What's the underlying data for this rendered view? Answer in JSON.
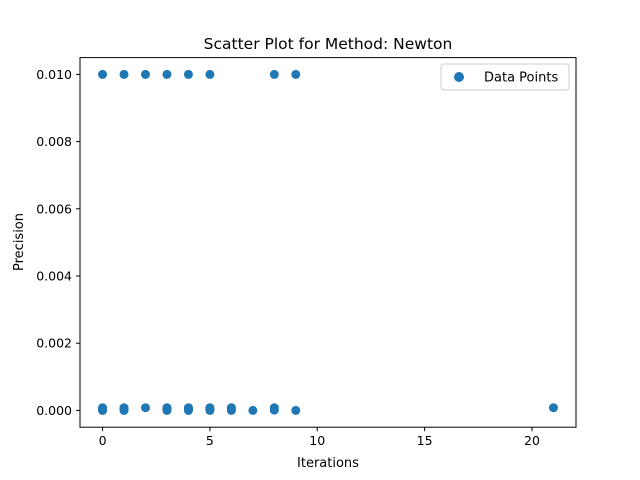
{
  "chart_data": {
    "type": "scatter",
    "title": "Scatter Plot for Method: Newton",
    "xlabel": "Iterations",
    "ylabel": "Precision",
    "xlim": [
      -1.05,
      22.05
    ],
    "ylim": [
      -0.0005,
      0.0105
    ],
    "x_ticks": [
      0,
      5,
      10,
      15,
      20
    ],
    "x_tick_labels": [
      "0",
      "5",
      "10",
      "15",
      "20"
    ],
    "y_ticks": [
      0.0,
      0.002,
      0.004,
      0.006,
      0.008,
      0.01
    ],
    "y_tick_labels": [
      "0.000",
      "0.002",
      "0.004",
      "0.006",
      "0.008",
      "0.010"
    ],
    "grid": false,
    "legend": {
      "position": "top-right",
      "entries": [
        "Data Points"
      ]
    },
    "marker_color": "#1f77b4",
    "series": [
      {
        "name": "Data Points",
        "points": [
          {
            "x": 0,
            "y": 0.01
          },
          {
            "x": 1,
            "y": 0.01
          },
          {
            "x": 2,
            "y": 0.01
          },
          {
            "x": 3,
            "y": 0.01
          },
          {
            "x": 4,
            "y": 0.01
          },
          {
            "x": 5,
            "y": 0.01
          },
          {
            "x": 8,
            "y": 0.01
          },
          {
            "x": 9,
            "y": 0.01
          },
          {
            "x": 0,
            "y": 0.0
          },
          {
            "x": 0,
            "y": 2e-05
          },
          {
            "x": 0,
            "y": 5e-05
          },
          {
            "x": 0,
            "y": 8e-05
          },
          {
            "x": 1,
            "y": 0.0
          },
          {
            "x": 1,
            "y": 2e-05
          },
          {
            "x": 1,
            "y": 5e-05
          },
          {
            "x": 1,
            "y": 8e-05
          },
          {
            "x": 2,
            "y": 8e-05
          },
          {
            "x": 3,
            "y": 0.0
          },
          {
            "x": 3,
            "y": 2e-05
          },
          {
            "x": 3,
            "y": 5e-05
          },
          {
            "x": 3,
            "y": 8e-05
          },
          {
            "x": 4,
            "y": 0.0
          },
          {
            "x": 4,
            "y": 2e-05
          },
          {
            "x": 4,
            "y": 5e-05
          },
          {
            "x": 4,
            "y": 8e-05
          },
          {
            "x": 5,
            "y": 0.0
          },
          {
            "x": 5,
            "y": 2e-05
          },
          {
            "x": 5,
            "y": 5e-05
          },
          {
            "x": 5,
            "y": 8e-05
          },
          {
            "x": 6,
            "y": 0.0
          },
          {
            "x": 6,
            "y": 4e-05
          },
          {
            "x": 6,
            "y": 8e-05
          },
          {
            "x": 7,
            "y": 0.0
          },
          {
            "x": 8,
            "y": 1e-05
          },
          {
            "x": 8,
            "y": 8e-05
          },
          {
            "x": 9,
            "y": 0.0
          },
          {
            "x": 21,
            "y": 8e-05
          }
        ]
      }
    ]
  }
}
